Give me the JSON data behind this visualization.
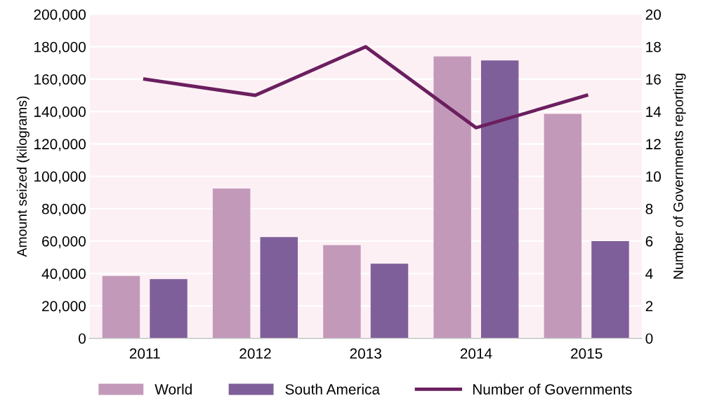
{
  "chart_data": {
    "type": "bar",
    "ylabel": "Amount seized (kilograms)",
    "y2label": "Number of Governments reporting",
    "categories": [
      "2011",
      "2012",
      "2013",
      "2014",
      "2015"
    ],
    "series": [
      {
        "name": "World",
        "color": "#c399ba",
        "values": [
          38500,
          92500,
          57500,
          174000,
          138500
        ]
      },
      {
        "name": "South America",
        "color": "#7f5f9a",
        "values": [
          36500,
          62500,
          46000,
          171500,
          60000
        ]
      },
      {
        "name": "Number of Governments",
        "type": "line",
        "axis": "y2",
        "color": "#6b1f5f",
        "values": [
          16,
          15,
          18,
          13,
          15
        ]
      }
    ],
    "ylim": [
      0,
      200000
    ],
    "yticks": [
      {
        "value": 0,
        "label": "0"
      },
      {
        "value": 20000,
        "label": "20,000"
      },
      {
        "value": 40000,
        "label": "40,000"
      },
      {
        "value": 60000,
        "label": "60,000"
      },
      {
        "value": 80000,
        "label": "80,000"
      },
      {
        "value": 100000,
        "label": "100,000"
      },
      {
        "value": 120000,
        "label": "120,000"
      },
      {
        "value": 140000,
        "label": "140,000"
      },
      {
        "value": 160000,
        "label": "160,000"
      },
      {
        "value": 180000,
        "label": "180,000"
      },
      {
        "value": 200000,
        "label": "200,000"
      }
    ],
    "y2lim": [
      0,
      20
    ],
    "y2ticks": [
      0,
      2,
      4,
      6,
      8,
      10,
      12,
      14,
      16,
      18,
      20
    ],
    "grid": "y",
    "legend": "bottom"
  }
}
